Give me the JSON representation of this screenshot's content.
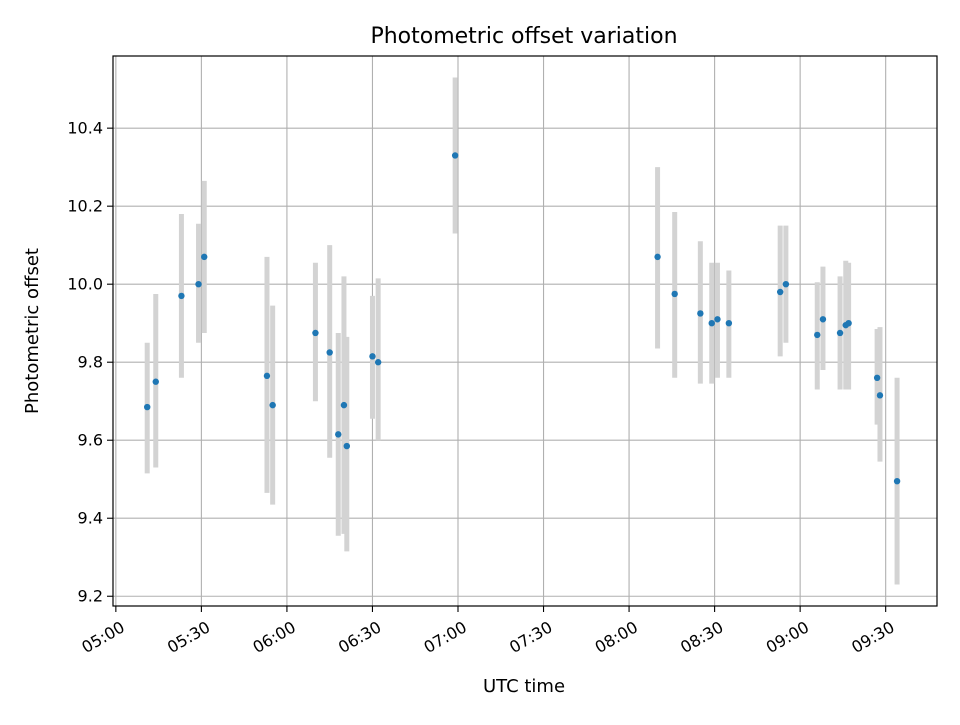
{
  "chart_data": {
    "type": "scatter",
    "title": "Photometric offset variation",
    "xlabel": "UTC time",
    "ylabel": "Photometric offset",
    "x_is_time": true,
    "xlim": [
      "04:59",
      "09:48"
    ],
    "ylim": [
      9.175,
      10.585
    ],
    "grid": true,
    "xticks": [
      "05:00",
      "05:30",
      "06:00",
      "06:30",
      "07:00",
      "07:30",
      "08:00",
      "08:30",
      "09:00",
      "09:30"
    ],
    "yticks": [
      9.2,
      9.4,
      9.6,
      9.8,
      10.0,
      10.2,
      10.4
    ],
    "colors": {
      "point": "#1f77b4",
      "errorbar": "#d3d3d3",
      "grid": "#b0b0b0"
    },
    "series": [
      {
        "points": [
          {
            "x": "05:11",
            "y": 9.685,
            "low": 9.515,
            "high": 9.85
          },
          {
            "x": "05:14",
            "y": 9.75,
            "low": 9.53,
            "high": 9.975
          },
          {
            "x": "05:23",
            "y": 9.97,
            "low": 9.76,
            "high": 10.18
          },
          {
            "x": "05:29",
            "y": 10.0,
            "low": 9.85,
            "high": 10.155
          },
          {
            "x": "05:31",
            "y": 10.07,
            "low": 9.875,
            "high": 10.265
          },
          {
            "x": "05:53",
            "y": 9.765,
            "low": 9.465,
            "high": 10.07
          },
          {
            "x": "05:55",
            "y": 9.69,
            "low": 9.435,
            "high": 9.945
          },
          {
            "x": "06:10",
            "y": 9.875,
            "low": 9.7,
            "high": 10.055
          },
          {
            "x": "06:15",
            "y": 9.825,
            "low": 9.555,
            "high": 10.1
          },
          {
            "x": "06:18",
            "y": 9.615,
            "low": 9.355,
            "high": 9.875
          },
          {
            "x": "06:20",
            "y": 9.69,
            "low": 9.36,
            "high": 10.02
          },
          {
            "x": "06:21",
            "y": 9.585,
            "low": 9.315,
            "high": 9.865
          },
          {
            "x": "06:30",
            "y": 9.815,
            "low": 9.655,
            "high": 9.97
          },
          {
            "x": "06:32",
            "y": 9.8,
            "low": 9.6,
            "high": 10.015
          },
          {
            "x": "06:59",
            "y": 10.33,
            "low": 10.13,
            "high": 10.53
          },
          {
            "x": "08:10",
            "y": 10.07,
            "low": 9.835,
            "high": 10.3
          },
          {
            "x": "08:16",
            "y": 9.975,
            "low": 9.76,
            "high": 10.185
          },
          {
            "x": "08:25",
            "y": 9.925,
            "low": 9.745,
            "high": 10.11
          },
          {
            "x": "08:29",
            "y": 9.9,
            "low": 9.745,
            "high": 10.055
          },
          {
            "x": "08:31",
            "y": 9.91,
            "low": 9.76,
            "high": 10.055
          },
          {
            "x": "08:35",
            "y": 9.9,
            "low": 9.76,
            "high": 10.035
          },
          {
            "x": "08:53",
            "y": 9.98,
            "low": 9.815,
            "high": 10.15
          },
          {
            "x": "08:55",
            "y": 10.0,
            "low": 9.85,
            "high": 10.15
          },
          {
            "x": "09:06",
            "y": 9.87,
            "low": 9.73,
            "high": 10.005
          },
          {
            "x": "09:08",
            "y": 9.91,
            "low": 9.78,
            "high": 10.045
          },
          {
            "x": "09:14",
            "y": 9.875,
            "low": 9.73,
            "high": 10.02
          },
          {
            "x": "09:16",
            "y": 9.895,
            "low": 9.73,
            "high": 10.06
          },
          {
            "x": "09:17",
            "y": 9.9,
            "low": 9.73,
            "high": 10.055
          },
          {
            "x": "09:27",
            "y": 9.76,
            "low": 9.64,
            "high": 9.885
          },
          {
            "x": "09:28",
            "y": 9.715,
            "low": 9.545,
            "high": 9.89
          },
          {
            "x": "09:34",
            "y": 9.495,
            "low": 9.23,
            "high": 9.76
          }
        ]
      }
    ]
  }
}
